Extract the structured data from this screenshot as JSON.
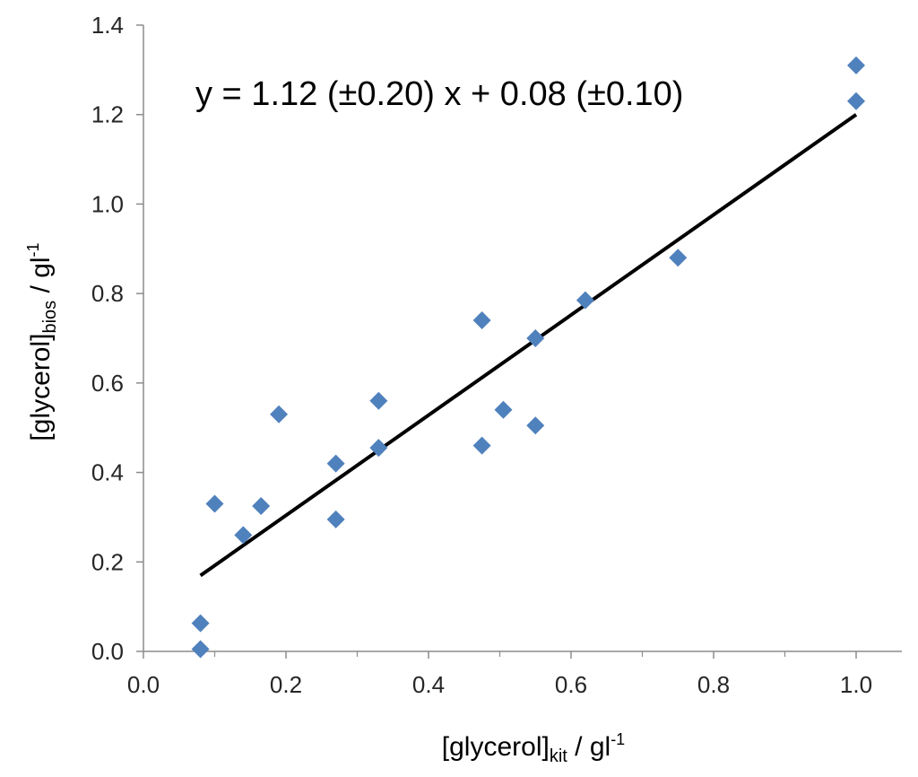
{
  "chart_data": {
    "type": "scatter",
    "title": "",
    "xlabel": {
      "main": "[glycerol]",
      "sub": "kit",
      "rest": " / gl",
      "sup": "-1"
    },
    "ylabel": {
      "main": "[glycerol]",
      "sub": "bios",
      "rest": " / gl",
      "sup": "-1"
    },
    "xlim": [
      0.0,
      1.05
    ],
    "ylim": [
      0.0,
      1.4
    ],
    "x_ticks": [
      "0.0",
      "0.2",
      "0.4",
      "0.6",
      "0.8",
      "1.0"
    ],
    "y_ticks": [
      "0.0",
      "0.2",
      "0.4",
      "0.6",
      "0.8",
      "1.0",
      "1.2",
      "1.4"
    ],
    "grid": false,
    "series": [
      {
        "name": "data",
        "marker": "diamond",
        "color": "#4F81BD",
        "points": [
          {
            "x": 0.08,
            "y": 0.005
          },
          {
            "x": 0.08,
            "y": 0.063
          },
          {
            "x": 0.1,
            "y": 0.33
          },
          {
            "x": 0.14,
            "y": 0.26
          },
          {
            "x": 0.165,
            "y": 0.325
          },
          {
            "x": 0.19,
            "y": 0.53
          },
          {
            "x": 0.27,
            "y": 0.42
          },
          {
            "x": 0.27,
            "y": 0.295
          },
          {
            "x": 0.33,
            "y": 0.56
          },
          {
            "x": 0.33,
            "y": 0.455
          },
          {
            "x": 0.475,
            "y": 0.74
          },
          {
            "x": 0.475,
            "y": 0.46
          },
          {
            "x": 0.505,
            "y": 0.54
          },
          {
            "x": 0.55,
            "y": 0.7
          },
          {
            "x": 0.55,
            "y": 0.505
          },
          {
            "x": 0.62,
            "y": 0.785
          },
          {
            "x": 0.75,
            "y": 0.88
          },
          {
            "x": 1.0,
            "y": 1.31
          },
          {
            "x": 1.0,
            "y": 1.23
          }
        ]
      }
    ],
    "trendline": {
      "type": "linear",
      "slope": 1.12,
      "intercept": 0.08,
      "x_range": [
        0.08,
        1.0
      ],
      "color": "#000000",
      "equation_label": "y = 1.12 (±0.20) x + 0.08 (±0.10)"
    }
  }
}
